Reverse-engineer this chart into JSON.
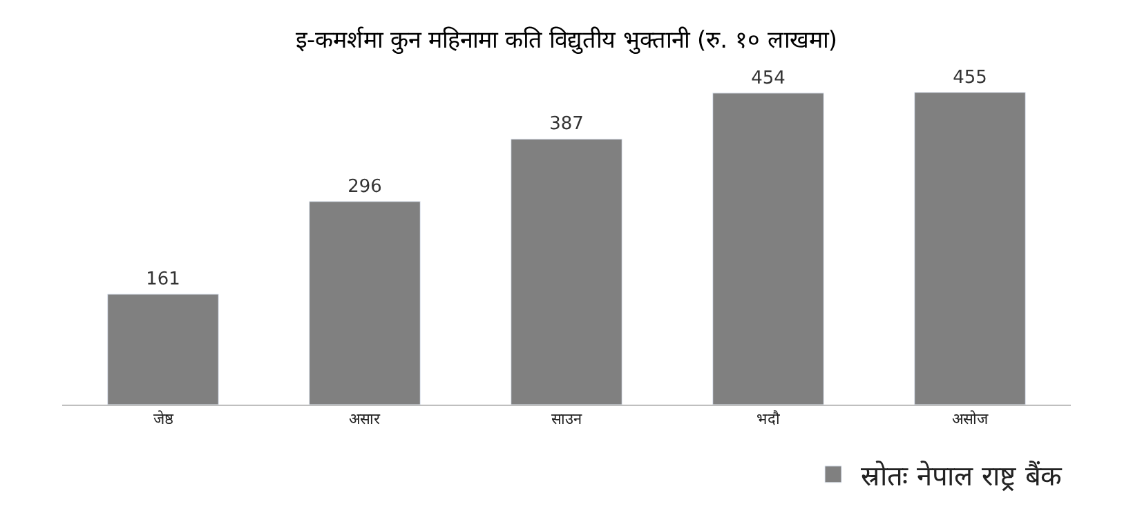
{
  "chart_data": {
    "type": "bar",
    "title": "इ-कमर्शमा कुन महिनामा कति विद्युतीय भुक्तानी (रु. १० लाखमा)",
    "categories": [
      "जेष्ठ",
      "असार",
      "साउन",
      "भदौ",
      "असोज"
    ],
    "series": [
      {
        "name": "स्रोतः नेपाल राष्ट्र बैंक",
        "color": "#808080",
        "values": [
          161,
          296,
          387,
          454,
          455
        ]
      }
    ],
    "data_labels": true,
    "legend": "bottom right",
    "tick_labels": "x"
  }
}
